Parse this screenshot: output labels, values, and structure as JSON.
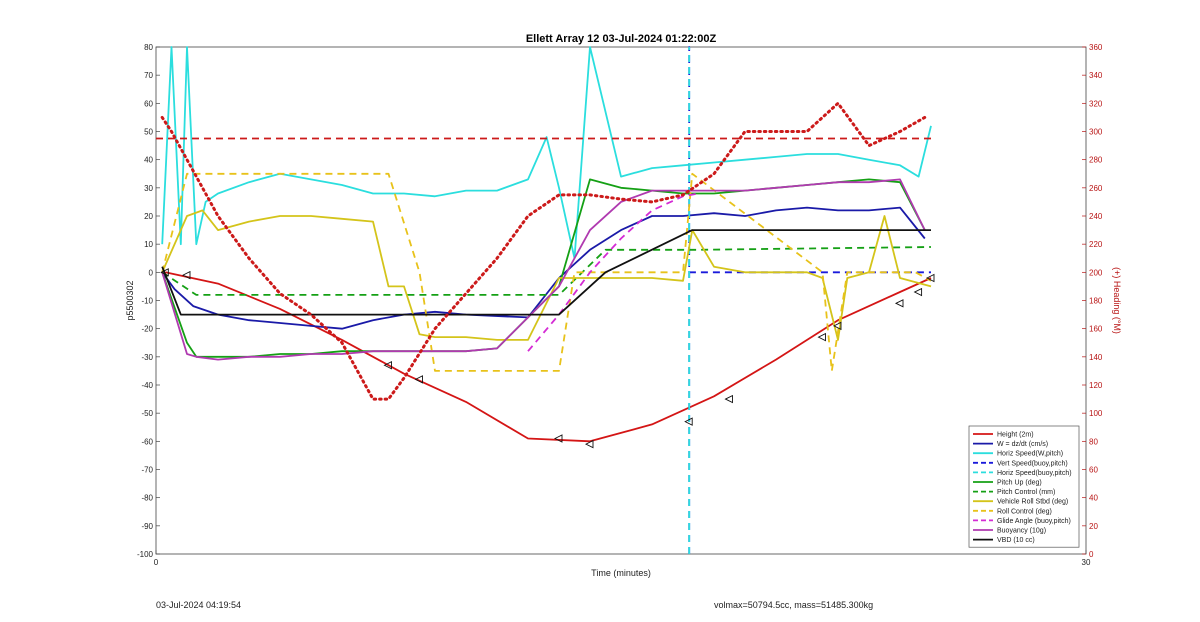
{
  "chart_data": {
    "type": "line",
    "title": "Ellett Array 12 03-Jul-2024 01:22:00Z",
    "xlabel": "Time (minutes)",
    "ylabel": "p5500302",
    "y2label": "(+) Heading (°M)",
    "xlim": [
      0,
      30
    ],
    "ylim": [
      -100,
      80
    ],
    "y2lim": [
      0,
      360
    ],
    "xticks": [
      "0",
      "30"
    ],
    "yticks": [
      "80",
      "70",
      "60",
      "50",
      "40",
      "30",
      "20",
      "10",
      "0",
      "-10",
      "-20",
      "-30",
      "-40",
      "-50",
      "-60",
      "-70",
      "-80",
      "-90",
      "-100"
    ],
    "y2ticks": [
      "360",
      "340",
      "320",
      "300",
      "280",
      "260",
      "240",
      "220",
      "200",
      "180",
      "160",
      "140",
      "120",
      "100",
      "80",
      "60",
      "40",
      "20",
      "0"
    ],
    "legend_position": "bottom-right",
    "series": [
      {
        "name": "Height (2m)",
        "color": "#d41515",
        "style": "solid",
        "x": [
          0.3,
          2,
          4,
          6,
          8,
          10,
          12,
          14,
          16,
          18,
          20,
          22,
          24,
          25
        ],
        "y": [
          0,
          -4,
          -13,
          -24,
          -36,
          -46,
          -59,
          -60,
          -54,
          -44,
          -31,
          -17,
          -7,
          -2
        ]
      },
      {
        "name": "W = dz/dt (cm/s)",
        "color": "#1a1aa8",
        "style": "solid",
        "x": [
          0.2,
          0.6,
          1.2,
          2,
          3,
          4,
          5,
          6,
          7,
          8,
          9,
          10,
          12,
          13,
          14,
          15,
          16,
          17,
          18,
          19,
          20,
          21,
          22,
          23,
          24,
          24.8
        ],
        "y": [
          0,
          -6,
          -12,
          -15,
          -17,
          -18,
          -19,
          -20,
          -17,
          -15,
          -14,
          -15,
          -16,
          -2,
          8,
          15,
          20,
          20,
          21,
          20,
          22,
          23,
          22,
          22,
          23,
          12
        ]
      },
      {
        "name": "Horiz Speed(W,pitch)",
        "color": "#2bdede",
        "style": "solid",
        "x": [
          0.2,
          0.5,
          0.8,
          1,
          1.3,
          1.6,
          2,
          3,
          4,
          5,
          6,
          7,
          8,
          9,
          10,
          11,
          12,
          12.6,
          13,
          13.5,
          14,
          15,
          16,
          17,
          18,
          19,
          20,
          21,
          22,
          23,
          24,
          24.6,
          25
        ],
        "y": [
          10,
          80,
          10,
          80,
          10,
          25,
          28,
          32,
          35,
          33,
          31,
          28,
          28,
          27,
          29,
          29,
          33,
          48,
          30,
          5,
          80,
          34,
          37,
          38,
          39,
          40,
          41,
          42,
          42,
          40,
          38,
          34,
          52
        ]
      },
      {
        "name": "Vert Speed(buoy,pitch)",
        "color": "#1a1adb",
        "style": "dashed",
        "x": [
          17.2,
          17.2,
          17.2,
          25
        ],
        "y": [
          -100,
          80,
          0,
          0
        ]
      },
      {
        "name": "Horiz Speed(buoy,pitch)",
        "color": "#2bdede",
        "style": "dashed",
        "x": [
          17.2,
          17.2
        ],
        "y": [
          -100,
          80
        ]
      },
      {
        "name": "Pitch Up (deg)",
        "color": "#15a015",
        "style": "solid",
        "x": [
          0.2,
          1,
          1.3,
          2,
          3,
          4,
          5,
          6,
          7,
          8,
          9,
          10,
          11,
          13,
          14,
          15,
          16,
          17,
          18,
          19,
          20,
          21,
          22,
          23,
          24,
          24.8
        ],
        "y": [
          0,
          -25,
          -30,
          -30,
          -30,
          -29,
          -29,
          -28,
          -28,
          -28,
          -28,
          -28,
          -27,
          -5,
          33,
          30,
          29,
          28,
          28,
          29,
          30,
          31,
          32,
          33,
          32,
          15
        ]
      },
      {
        "name": "Pitch Control (mm)",
        "color": "#15a015",
        "style": "dashed",
        "x": [
          0.2,
          1.3,
          13,
          14.5,
          17.5,
          25
        ],
        "y": [
          0,
          -8,
          -8,
          8,
          8,
          9
        ]
      },
      {
        "name": "Vehicle Roll Stbd (deg)",
        "color": "#d4c41a",
        "style": "solid",
        "x": [
          0.2,
          1,
          1.5,
          2,
          3,
          4,
          5,
          6,
          7,
          7.5,
          8,
          8.5,
          9,
          10,
          11,
          12,
          13,
          14,
          16,
          17,
          17.3,
          18,
          19,
          20,
          21,
          21.5,
          22,
          22.3,
          23,
          23.5,
          24,
          25
        ],
        "y": [
          0,
          20,
          22,
          15,
          18,
          20,
          20,
          19,
          18,
          -5,
          -5,
          -22,
          -23,
          -23,
          -24,
          -24,
          -2,
          -2,
          -2,
          -3,
          15,
          2,
          0,
          0,
          0,
          -2,
          -24,
          -2,
          0,
          20,
          -2,
          -5
        ]
      },
      {
        "name": "Roll Control (deg)",
        "color": "#e8c21a",
        "style": "dashed",
        "x": [
          0.2,
          1,
          1.3,
          7.5,
          8.5,
          9,
          13,
          13.5,
          17,
          17.3,
          21.5,
          21.8,
          22.3,
          22.5,
          24.5,
          25
        ],
        "y": [
          0,
          35,
          35,
          35,
          0,
          -35,
          -35,
          0,
          0,
          35,
          0,
          -35,
          0,
          0,
          0,
          -3
        ]
      },
      {
        "name": "Glide Angle (buoy,pitch)",
        "color": "#d42bd4",
        "style": "dashed",
        "x": [
          12,
          13,
          14,
          15,
          16,
          17,
          17.5
        ],
        "y": [
          -28,
          -15,
          0,
          12,
          22,
          27,
          28
        ]
      },
      {
        "name": "Buoyancy (10g)",
        "color": "#b03ab0",
        "style": "solid",
        "x": [
          0.2,
          1,
          1.3,
          2,
          3,
          4,
          5,
          6,
          7,
          8,
          9,
          10,
          11,
          13,
          14,
          15,
          16,
          17,
          18,
          19,
          20,
          21,
          22,
          23,
          24,
          24.8
        ],
        "y": [
          0,
          -29,
          -30,
          -31,
          -30,
          -30,
          -29,
          -29,
          -28,
          -28,
          -28,
          -28,
          -27,
          -5,
          15,
          25,
          29,
          29,
          29,
          29,
          30,
          31,
          32,
          32,
          33,
          15
        ]
      },
      {
        "name": "VBD (10 cc)",
        "color": "#111111",
        "style": "solid",
        "x": [
          0.2,
          0.8,
          13,
          14.5,
          17.3,
          25
        ],
        "y": [
          2,
          -15,
          -15,
          0,
          15,
          15
        ]
      },
      {
        "name": "Heading",
        "axis": "right",
        "color": "#cc1a1a",
        "style": "dotted",
        "x": [
          0.2,
          0.5,
          1,
          1.5,
          2,
          3,
          4,
          5,
          6,
          7,
          7.5,
          8,
          9,
          10,
          11,
          12,
          13,
          14,
          15,
          16,
          17,
          18,
          19,
          20,
          21,
          22,
          23,
          24,
          24.8
        ],
        "y": [
          310,
          300,
          280,
          260,
          240,
          210,
          185,
          170,
          150,
          110,
          110,
          125,
          160,
          185,
          210,
          240,
          255,
          255,
          252,
          250,
          255,
          270,
          300,
          300,
          300,
          320,
          290,
          300,
          310
        ]
      },
      {
        "name": "Heading (dashed)",
        "axis": "right",
        "color": "#cc1a1a",
        "style": "dashed",
        "x": [
          0,
          25
        ],
        "y": [
          295,
          295
        ]
      }
    ],
    "markers": {
      "color": "#d41515",
      "x": [
        0.3,
        1,
        7.5,
        8.5,
        13,
        14,
        17.2,
        18.5,
        21.5,
        22,
        24,
        24.6,
        25
      ],
      "y": [
        0,
        -1,
        -33,
        -38,
        -59,
        -61,
        -53,
        -45,
        -23,
        -19,
        -11,
        -7,
        -2
      ]
    }
  },
  "legend": [
    {
      "label": "Height (2m)",
      "color": "#d41515",
      "style": "solid"
    },
    {
      "label": "W = dz/dt (cm/s)",
      "color": "#1a1aa8",
      "style": "solid"
    },
    {
      "label": "Horiz Speed(W,pitch)",
      "color": "#2bdede",
      "style": "solid"
    },
    {
      "label": "Vert Speed(buoy,pitch)",
      "color": "#1a1adb",
      "style": "dashed"
    },
    {
      "label": "Horiz Speed(buoy,pitch)",
      "color": "#2bdede",
      "style": "dashed"
    },
    {
      "label": "Pitch Up (deg)",
      "color": "#15a015",
      "style": "solid"
    },
    {
      "label": "Pitch Control (mm)",
      "color": "#15a015",
      "style": "dashed"
    },
    {
      "label": "Vehicle Roll Stbd (deg)",
      "color": "#d4c41a",
      "style": "solid"
    },
    {
      "label": "Roll Control (deg)",
      "color": "#e8c21a",
      "style": "dashed"
    },
    {
      "label": "Glide Angle (buoy,pitch)",
      "color": "#d42bd4",
      "style": "dashed"
    },
    {
      "label": "Buoyancy (10g)",
      "color": "#b03ab0",
      "style": "solid"
    },
    {
      "label": "VBD (10 cc)",
      "color": "#111111",
      "style": "solid"
    }
  ],
  "footer": {
    "timestamp": "03-Jul-2024 04:19:54",
    "volmax": "volmax=50794.5cc, mass=51485.300kg"
  }
}
